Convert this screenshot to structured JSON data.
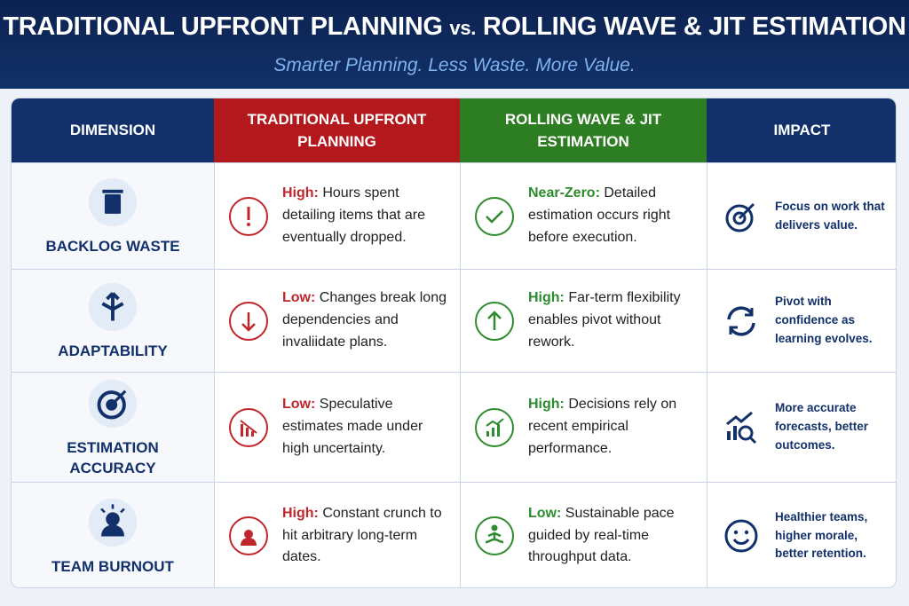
{
  "header": {
    "title": [
      "TRADITIONAL UPFRONT PLANNING",
      "vs.",
      "ROLLING WAVE & JIT ESTIMATION"
    ],
    "subtitle": "Smarter Planning. Less Waste. More Value."
  },
  "table": {
    "headers": [
      "DIMENSION",
      "TRADITIONAL UPFRONT PLANNING",
      "ROLLING WAVE & JIT ESTIMATION",
      "IMPACT"
    ],
    "rows": [
      {
        "dimension": "BACKLOG WASTE",
        "traditional": {
          "label": "High:",
          "text": "Hours spent detailing items that are eventually dropped."
        },
        "rolling": {
          "label": "Near-Zero:",
          "text": "Detailed estimation occurs right before execution."
        },
        "impact": "Focus on work that delivers value."
      },
      {
        "dimension": "ADAPTABILITY",
        "traditional": {
          "label": "Low:",
          "text": "Changes break long dependencies and invaliidate plans."
        },
        "rolling": {
          "label": "High:",
          "text": "Far-term flexibility enables pivot without rework."
        },
        "impact": "Pivot with confidence as learning evolves."
      },
      {
        "dimension": "ESTIMATION ACCURACY",
        "traditional": {
          "label": "Low:",
          "text": "Speculative estimates made under high uncertainty."
        },
        "rolling": {
          "label": "High:",
          "text": "Decisions rely on recent empirical performance."
        },
        "impact": "More accurate forecasts, better outcomes."
      },
      {
        "dimension": "TEAM BURNOUT",
        "traditional": {
          "label": "High:",
          "text": "Constant crunch to hit arbitrary long-term dates."
        },
        "rolling": {
          "label": "Low:",
          "text": "Sustainable pace guided by real-time throughput data."
        },
        "impact": "Healthier teams, higher morale, better retention."
      }
    ]
  }
}
